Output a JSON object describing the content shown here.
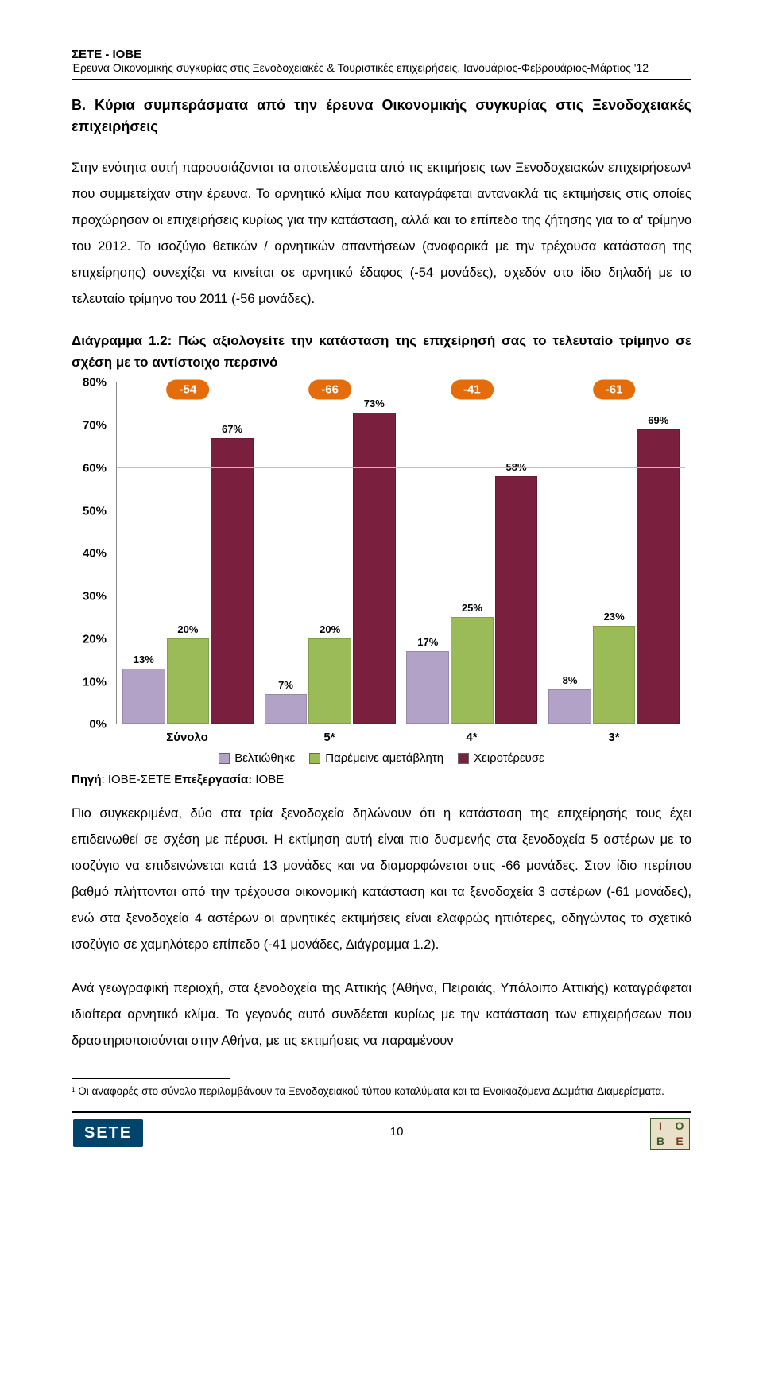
{
  "header": {
    "org": "ΣΕΤΕ - ΙΟΒΕ",
    "subtitle": "Έρευνα Οικονομικής συγκυρίας στις Ξενοδοχειακές & Τουριστικές επιχειρήσεις, Ιανουάριος-Φεβρουάριος-Μάρτιος '12"
  },
  "section_title": "Β. Κύρια συμπεράσματα από την έρευνα Οικονομικής συγκυρίας στις Ξενοδοχειακές επιχειρήσεις",
  "para1": "Στην ενότητα αυτή παρουσιάζονται τα αποτελέσματα από τις εκτιμήσεις των Ξενοδοχειακών επιχειρήσεων¹ που συμμετείχαν στην έρευνα. Το αρνητικό κλίμα που καταγράφεται αντανακλά τις εκτιμήσεις στις οποίες προχώρησαν οι επιχειρήσεις κυρίως για την κατάσταση, αλλά και το επίπεδο της ζήτησης για το α' τρίμηνο του 2012. Το ισοζύγιο θετικών / αρνητικών απαντήσεων (αναφορικά με την τρέχουσα κατάσταση της επιχείρησης) συνεχίζει να κινείται σε αρνητικό έδαφος (-54 μονάδες), σχεδόν στο ίδιο δηλαδή με το τελευταίο τρίμηνο του 2011 (-56 μονάδες).",
  "chart_title": "Διάγραμμα 1.2: Πώς αξιολογείτε την κατάσταση της επιχείρησή σας το τελευταίο τρίμηνο σε σχέση με το αντίστοιχο περσινό",
  "chart": {
    "type": "bar",
    "ylim": [
      0,
      80
    ],
    "ytick_step": 10,
    "y_format_suffix": "%",
    "grid_color": "#bfbfbf",
    "axis_color": "#888888",
    "background_color": "#ffffff",
    "bubble_color": "#e46c0a",
    "bubble_text_color": "#ffffff",
    "series": [
      {
        "name": "Βελτιώθηκε",
        "color": "#b3a2c7"
      },
      {
        "name": "Παρέμεινε αμετάβλητη",
        "color": "#9bbb59"
      },
      {
        "name": "Χειροτέρευσε",
        "color": "#7a1f3d"
      }
    ],
    "categories": [
      {
        "label": "Σύνολο",
        "bubble": "-54",
        "values": [
          13,
          20,
          67
        ]
      },
      {
        "label": "5*",
        "bubble": "-66",
        "values": [
          7,
          20,
          73
        ]
      },
      {
        "label": "4*",
        "bubble": "-41",
        "values": [
          17,
          25,
          58
        ]
      },
      {
        "label": "3*",
        "bubble": "-61",
        "values": [
          8,
          23,
          69
        ]
      }
    ],
    "y_ticks": [
      "0%",
      "10%",
      "20%",
      "30%",
      "40%",
      "50%",
      "60%",
      "70%",
      "80%"
    ]
  },
  "source_line": {
    "prefix": "Πηγή",
    "prefix_val": ": ΙΟΒΕ-ΣΕΤΕ ",
    "proc_label": "Επεξεργασία:",
    "proc_val": " ΙΟΒΕ"
  },
  "para2": "Πιο συγκεκριμένα, δύο στα τρία ξενοδοχεία δηλώνουν ότι η κατάσταση της επιχείρησής τους έχει επιδεινωθεί σε σχέση με πέρυσι. Η εκτίμηση αυτή είναι πιο δυσμενής στα ξενοδοχεία 5 αστέρων με το ισοζύγιο να επιδεινώνεται κατά 13 μονάδες και να διαμορφώνεται στις -66 μονάδες. Στον ίδιο περίπου βαθμό πλήττονται από την τρέχουσα οικονομική κατάσταση και τα ξενοδοχεία 3 αστέρων (-61 μονάδες), ενώ στα ξενοδοχεία 4 αστέρων οι αρνητικές εκτιμήσεις είναι ελαφρώς ηπιότερες, οδηγώντας το σχετικό ισοζύγιο σε χαμηλότερο επίπεδο (-41 μονάδες, Διάγραμμα 1.2).",
  "para3": "Ανά γεωγραφική περιοχή, στα ξενοδοχεία της Αττικής (Αθήνα, Πειραιάς, Υπόλοιπο Αττικής) καταγράφεται ιδιαίτερα αρνητικό κλίμα. Το γεγονός αυτό συνδέεται κυρίως με την κατάσταση των επιχειρήσεων που δραστηριοποιούνται στην Αθήνα, με τις εκτιμήσεις να παραμένουν",
  "footnote": "¹ Οι αναφορές στο σύνολο περιλαμβάνουν τα Ξενοδοχειακού τύπου καταλύματα και τα Ενοικιαζόμενα Δωμάτια-Διαμερίσματα.",
  "footer": {
    "sete_label": "SETE",
    "page_number": "10",
    "iobe": {
      "i": "I",
      "o": "O",
      "b": "B",
      "e": "E"
    }
  }
}
